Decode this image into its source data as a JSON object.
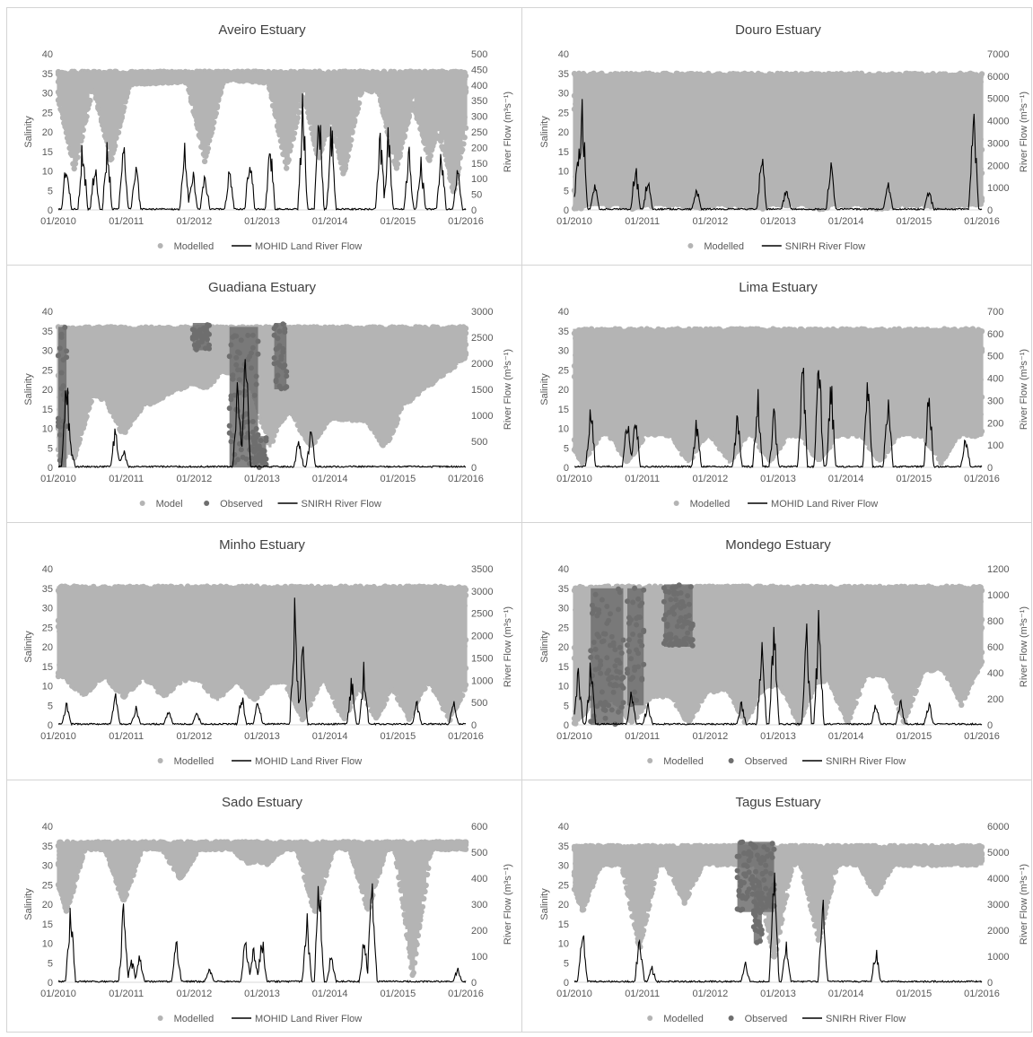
{
  "colors": {
    "modelled": "#b4b4b4",
    "observed": "#6e6e6e",
    "flow": "#000000",
    "axis": "#d9d9d9",
    "text": "#595959",
    "title": "#404040"
  },
  "chart_data": [
    {
      "type": "scatter",
      "title": "Aveiro Estuary",
      "ylabel": "Salinity",
      "y2label": "River Flow (m³s⁻¹)",
      "ylim": [
        0,
        40
      ],
      "yticks": [
        0,
        5,
        10,
        15,
        20,
        25,
        30,
        35,
        40
      ],
      "y2lim": [
        0,
        500
      ],
      "y2ticks": [
        0,
        50,
        100,
        150,
        200,
        250,
        300,
        350,
        400,
        450,
        500
      ],
      "xticks": [
        "01/2010",
        "01/2011",
        "01/2012",
        "01/2013",
        "01/2014",
        "01/2015",
        "01/2016"
      ],
      "legend": [
        "Modelled",
        "MOHID Land River Flow"
      ],
      "legend_kinds": [
        "dot-light",
        "line"
      ],
      "modelled": {
        "upper": 35.5,
        "dips": [
          [
            0.04,
            10
          ],
          [
            0.13,
            12
          ],
          [
            0.36,
            12
          ],
          [
            0.56,
            10
          ],
          [
            0.64,
            12
          ],
          [
            0.7,
            8
          ],
          [
            0.83,
            10
          ],
          [
            0.91,
            12
          ],
          [
            0.97,
            3
          ]
        ],
        "band_low": [
          [
            0.0,
            30
          ],
          [
            0.15,
            32
          ],
          [
            0.45,
            33
          ],
          [
            0.7,
            31
          ],
          [
            1.0,
            28
          ]
        ]
      },
      "flow_events": [
        [
          0.02,
          200
        ],
        [
          0.06,
          260
        ],
        [
          0.09,
          180
        ],
        [
          0.12,
          270
        ],
        [
          0.16,
          240
        ],
        [
          0.19,
          190
        ],
        [
          0.31,
          220
        ],
        [
          0.33,
          160
        ],
        [
          0.36,
          140
        ],
        [
          0.42,
          150
        ],
        [
          0.47,
          240
        ],
        [
          0.52,
          260
        ],
        [
          0.6,
          420
        ],
        [
          0.64,
          400
        ],
        [
          0.67,
          320
        ],
        [
          0.79,
          300
        ],
        [
          0.81,
          320
        ],
        [
          0.86,
          230
        ],
        [
          0.89,
          180
        ],
        [
          0.94,
          210
        ],
        [
          0.98,
          150
        ]
      ]
    },
    {
      "type": "scatter",
      "title": "Douro Estuary",
      "ylabel": "Salinity",
      "y2label": "River Flow (m³s⁻¹)",
      "ylim": [
        0,
        40
      ],
      "yticks": [
        0,
        5,
        10,
        15,
        20,
        25,
        30,
        35,
        40
      ],
      "y2lim": [
        0,
        7000
      ],
      "y2ticks": [
        0,
        1000,
        2000,
        3000,
        4000,
        5000,
        6000,
        7000
      ],
      "xticks": [
        "01/2010",
        "01/2011",
        "01/2012",
        "01/2013",
        "01/2014",
        "01/2015",
        "01/2016"
      ],
      "legend": [
        "Modelled",
        "SNIRH River Flow"
      ],
      "legend_kinds": [
        "dot-light",
        "line"
      ],
      "modelled": {
        "upper": 35,
        "dips": [
          [
            0.0,
            0
          ],
          [
            0.15,
            0
          ],
          [
            0.3,
            0
          ],
          [
            0.45,
            0
          ],
          [
            0.6,
            0
          ],
          [
            0.75,
            0
          ],
          [
            0.9,
            0
          ]
        ],
        "band_low": [
          [
            0.0,
            1
          ],
          [
            1.0,
            1
          ]
        ]
      },
      "flow_events": [
        [
          0.01,
          3500
        ],
        [
          0.02,
          5500
        ],
        [
          0.05,
          1500
        ],
        [
          0.15,
          2500
        ],
        [
          0.18,
          1800
        ],
        [
          0.3,
          1200
        ],
        [
          0.46,
          3000
        ],
        [
          0.52,
          1200
        ],
        [
          0.63,
          2500
        ],
        [
          0.77,
          1500
        ],
        [
          0.87,
          1200
        ],
        [
          0.98,
          5800
        ]
      ]
    },
    {
      "type": "scatter",
      "title": "Guadiana Estuary",
      "ylabel": "Salinity",
      "y2label": "River Flow (m³s⁻¹)",
      "ylim": [
        0,
        40
      ],
      "yticks": [
        0,
        5,
        10,
        15,
        20,
        25,
        30,
        35,
        40
      ],
      "y2lim": [
        0,
        3000
      ],
      "y2ticks": [
        0,
        500,
        1000,
        1500,
        2000,
        2500,
        3000
      ],
      "xticks": [
        "01/2010",
        "01/2011",
        "01/2012",
        "01/2013",
        "01/2014",
        "01/2015",
        "01/2016"
      ],
      "legend": [
        "Model",
        "Observed",
        "SNIRH River Flow"
      ],
      "legend_kinds": [
        "dot-light",
        "dot-dark",
        "line"
      ],
      "modelled": {
        "upper": 36,
        "dips": [
          [
            0.01,
            0
          ],
          [
            0.04,
            2
          ],
          [
            0.16,
            8
          ],
          [
            0.36,
            20
          ],
          [
            0.52,
            5
          ],
          [
            0.62,
            5
          ],
          [
            0.8,
            5
          ]
        ],
        "band_low": [
          [
            0.0,
            20
          ],
          [
            0.2,
            15
          ],
          [
            0.4,
            25
          ],
          [
            0.6,
            12
          ],
          [
            0.8,
            12
          ],
          [
            1.0,
            28
          ]
        ]
      },
      "observed_blocks": [
        [
          0.0,
          0.02,
          0,
          36
        ],
        [
          0.33,
          0.37,
          30,
          37
        ],
        [
          0.42,
          0.49,
          0,
          36
        ],
        [
          0.48,
          0.51,
          0,
          8
        ],
        [
          0.53,
          0.56,
          20,
          37
        ]
      ],
      "flow_events": [
        [
          0.02,
          2100
        ],
        [
          0.03,
          500
        ],
        [
          0.14,
          1000
        ],
        [
          0.16,
          400
        ],
        [
          0.44,
          1900
        ],
        [
          0.46,
          2600
        ],
        [
          0.59,
          700
        ],
        [
          0.62,
          800
        ]
      ]
    },
    {
      "type": "scatter",
      "title": "Lima Estuary",
      "ylabel": "Salinity",
      "y2label": "River Flow (m³s⁻¹)",
      "ylim": [
        0,
        40
      ],
      "yticks": [
        0,
        5,
        10,
        15,
        20,
        25,
        30,
        35,
        40
      ],
      "y2lim": [
        0,
        700
      ],
      "y2ticks": [
        0,
        100,
        200,
        300,
        400,
        500,
        600,
        700
      ],
      "xticks": [
        "01/2010",
        "01/2011",
        "01/2012",
        "01/2013",
        "01/2014",
        "01/2015",
        "01/2016"
      ],
      "legend": [
        "Modelled",
        "MOHID Land River Flow"
      ],
      "legend_kinds": [
        "dot-light",
        "line"
      ],
      "modelled": {
        "upper": 35.5,
        "dips": [
          [
            0.02,
            1
          ],
          [
            0.13,
            1
          ],
          [
            0.28,
            1
          ],
          [
            0.38,
            1
          ],
          [
            0.48,
            1
          ],
          [
            0.6,
            1
          ],
          [
            0.75,
            1
          ],
          [
            0.9,
            1
          ]
        ],
        "band_low": [
          [
            0.0,
            8
          ],
          [
            1.0,
            8
          ]
        ]
      },
      "flow_events": [
        [
          0.04,
          350
        ],
        [
          0.13,
          300
        ],
        [
          0.15,
          280
        ],
        [
          0.3,
          250
        ],
        [
          0.4,
          280
        ],
        [
          0.45,
          400
        ],
        [
          0.49,
          300
        ],
        [
          0.56,
          590
        ],
        [
          0.6,
          590
        ],
        [
          0.63,
          450
        ],
        [
          0.72,
          460
        ],
        [
          0.77,
          380
        ],
        [
          0.87,
          420
        ],
        [
          0.96,
          170
        ]
      ]
    },
    {
      "type": "scatter",
      "title": "Minho Estuary",
      "ylabel": "Salinity",
      "y2label": "River Flow (m³s⁻¹)",
      "ylim": [
        0,
        40
      ],
      "yticks": [
        0,
        5,
        10,
        15,
        20,
        25,
        30,
        35,
        40
      ],
      "y2lim": [
        0,
        3500
      ],
      "y2ticks": [
        0,
        500,
        1000,
        1500,
        2000,
        2500,
        3000,
        3500
      ],
      "xticks": [
        "01/2010",
        "01/2011",
        "01/2012",
        "01/2013",
        "01/2014",
        "01/2015",
        "01/2016"
      ],
      "legend": [
        "Modelled",
        "MOHID Land River Flow"
      ],
      "legend_kinds": [
        "dot-light",
        "line"
      ],
      "modelled": {
        "upper": 35.5,
        "dips": [
          [
            0.06,
            7
          ],
          [
            0.16,
            7
          ],
          [
            0.26,
            7
          ],
          [
            0.39,
            6
          ],
          [
            0.48,
            6
          ],
          [
            0.6,
            1
          ],
          [
            0.7,
            1
          ],
          [
            0.78,
            1
          ],
          [
            0.86,
            1
          ],
          [
            0.96,
            1
          ]
        ],
        "band_low": [
          [
            0.0,
            12
          ],
          [
            1.0,
            10
          ]
        ]
      },
      "flow_events": [
        [
          0.02,
          550
        ],
        [
          0.14,
          800
        ],
        [
          0.19,
          500
        ],
        [
          0.27,
          400
        ],
        [
          0.34,
          350
        ],
        [
          0.45,
          800
        ],
        [
          0.49,
          700
        ],
        [
          0.58,
          2900
        ],
        [
          0.6,
          2000
        ],
        [
          0.72,
          1200
        ],
        [
          0.75,
          1500
        ],
        [
          0.88,
          600
        ],
        [
          0.97,
          600
        ]
      ]
    },
    {
      "type": "scatter",
      "title": "Mondego Estuary",
      "ylabel": "Salinity",
      "y2label": "River Flow (m³s⁻¹)",
      "ylim": [
        0,
        40
      ],
      "yticks": [
        0,
        5,
        10,
        15,
        20,
        25,
        30,
        35,
        40
      ],
      "y2lim": [
        0,
        1200
      ],
      "y2ticks": [
        0,
        200,
        400,
        600,
        800,
        1000,
        1200
      ],
      "xticks": [
        "01/2010",
        "01/2011",
        "01/2012",
        "01/2013",
        "01/2014",
        "01/2015",
        "01/2016"
      ],
      "legend": [
        "Modelled",
        "Observed",
        "SNIRH River Flow"
      ],
      "legend_kinds": [
        "dot-light",
        "dot-dark",
        "line"
      ],
      "modelled": {
        "upper": 35.5,
        "dips": [
          [
            0.0,
            0
          ],
          [
            0.14,
            0
          ],
          [
            0.28,
            0
          ],
          [
            0.42,
            0
          ],
          [
            0.55,
            0
          ],
          [
            0.67,
            0
          ],
          [
            0.81,
            0
          ],
          [
            0.95,
            5
          ]
        ],
        "band_low": [
          [
            0.0,
            5
          ],
          [
            1.0,
            15
          ]
        ]
      },
      "observed_blocks": [
        [
          0.04,
          0.12,
          0,
          35
        ],
        [
          0.13,
          0.17,
          5,
          35
        ],
        [
          0.22,
          0.29,
          20,
          36
        ]
      ],
      "flow_events": [
        [
          0.01,
          500
        ],
        [
          0.04,
          550
        ],
        [
          0.14,
          300
        ],
        [
          0.18,
          200
        ],
        [
          0.41,
          200
        ],
        [
          0.46,
          700
        ],
        [
          0.49,
          950
        ],
        [
          0.57,
          900
        ],
        [
          0.6,
          1020
        ],
        [
          0.74,
          200
        ],
        [
          0.8,
          250
        ],
        [
          0.87,
          200
        ]
      ]
    },
    {
      "type": "scatter",
      "title": "Sado Estuary",
      "ylabel": "Salinity",
      "y2label": "River Flow (m³s⁻¹)",
      "ylim": [
        0,
        40
      ],
      "yticks": [
        0,
        5,
        10,
        15,
        20,
        25,
        30,
        35,
        40
      ],
      "y2lim": [
        0,
        600
      ],
      "y2ticks": [
        0,
        100,
        200,
        300,
        400,
        500,
        600
      ],
      "xticks": [
        "01/2010",
        "01/2011",
        "01/2012",
        "01/2013",
        "01/2014",
        "01/2015",
        "01/2016"
      ],
      "legend": [
        "Modelled",
        "MOHID Land River Flow"
      ],
      "legend_kinds": [
        "dot-light",
        "line"
      ],
      "modelled": {
        "upper": 36,
        "dips": [
          [
            0.02,
            17
          ],
          [
            0.16,
            20
          ],
          [
            0.3,
            26
          ],
          [
            0.47,
            30
          ],
          [
            0.51,
            30
          ],
          [
            0.63,
            17
          ],
          [
            0.76,
            18
          ],
          [
            0.87,
            1
          ]
        ],
        "band_low": [
          [
            0.0,
            34
          ],
          [
            1.0,
            34
          ]
        ]
      },
      "flow_events": [
        [
          0.03,
          365
        ],
        [
          0.16,
          330
        ],
        [
          0.18,
          100
        ],
        [
          0.2,
          120
        ],
        [
          0.29,
          190
        ],
        [
          0.37,
          70
        ],
        [
          0.46,
          210
        ],
        [
          0.48,
          160
        ],
        [
          0.5,
          220
        ],
        [
          0.61,
          300
        ],
        [
          0.64,
          490
        ],
        [
          0.67,
          130
        ],
        [
          0.75,
          200
        ],
        [
          0.77,
          470
        ],
        [
          0.98,
          60
        ]
      ]
    },
    {
      "type": "scatter",
      "title": "Tagus Estuary",
      "ylabel": "Salinity",
      "y2label": "River Flow (m³s⁻¹)",
      "ylim": [
        0,
        40
      ],
      "yticks": [
        0,
        5,
        10,
        15,
        20,
        25,
        30,
        35,
        40
      ],
      "y2lim": [
        0,
        6000
      ],
      "y2ticks": [
        0,
        1000,
        2000,
        3000,
        4000,
        5000,
        6000
      ],
      "xticks": [
        "01/2010",
        "01/2011",
        "01/2012",
        "01/2013",
        "01/2014",
        "01/2015",
        "01/2016"
      ],
      "legend": [
        "Modelled",
        "Observed",
        "SNIRH River Flow"
      ],
      "legend_kinds": [
        "dot-light",
        "dot-dark",
        "line"
      ],
      "modelled": {
        "upper": 35,
        "dips": [
          [
            0.02,
            18
          ],
          [
            0.16,
            8
          ],
          [
            0.27,
            20
          ],
          [
            0.49,
            5
          ],
          [
            0.6,
            10
          ],
          [
            0.74,
            22
          ]
        ],
        "band_low": [
          [
            0.0,
            30
          ],
          [
            1.0,
            30
          ]
        ]
      },
      "observed_blocks": [
        [
          0.4,
          0.49,
          18,
          36
        ],
        [
          0.44,
          0.46,
          10,
          25
        ]
      ],
      "flow_events": [
        [
          0.02,
          3000
        ],
        [
          0.16,
          2300
        ],
        [
          0.19,
          700
        ],
        [
          0.42,
          800
        ],
        [
          0.49,
          5300
        ],
        [
          0.52,
          1800
        ],
        [
          0.61,
          3600
        ],
        [
          0.74,
          1500
        ]
      ]
    }
  ]
}
